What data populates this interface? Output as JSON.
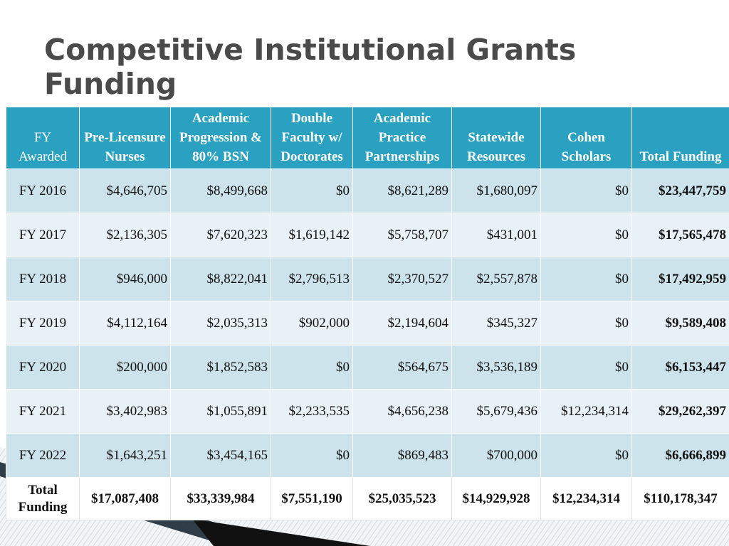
{
  "title": "Competitive Institutional Grants Funding",
  "headers": [
    "FY Awarded",
    "Pre-Licensure Nurses",
    "Academic Progression & 80% BSN",
    "Double Faculty w/ Doctorates",
    "Academic Practice Partnerships",
    "Statewide Resources",
    "Cohen Scholars",
    "Total Funding"
  ],
  "rows": [
    [
      "FY 2016",
      "$4,646,705",
      "$8,499,668",
      "$0",
      "$8,621,289",
      "$1,680,097",
      "$0",
      "$23,447,759"
    ],
    [
      "FY 2017",
      "$2,136,305",
      "$7,620,323",
      "$1,619,142",
      "$5,758,707",
      "$431,001",
      "$0",
      "$17,565,478"
    ],
    [
      "FY 2018",
      "$946,000",
      "$8,822,041",
      "$2,796,513",
      "$2,370,527",
      "$2,557,878",
      "$0",
      "$17,492,959"
    ],
    [
      "FY 2019",
      "$4,112,164",
      "$2,035,313",
      "$902,000",
      "$2,194,604",
      "$345,327",
      "$0",
      "$9,589,408"
    ],
    [
      "FY 2020",
      "$200,000",
      "$1,852,583",
      "$0",
      "$564,675",
      "$3,536,189",
      "$0",
      "$6,153,447"
    ],
    [
      "FY 2021",
      "$3,402,983",
      "$1,055,891",
      "$2,233,535",
      "$4,656,238",
      "$5,679,436",
      "$12,234,314",
      "$29,262,397"
    ],
    [
      "FY 2022",
      "$1,643,251",
      "$3,454,165",
      "$0",
      "$869,483",
      "$700,000",
      "$0",
      "$6,666,899"
    ]
  ],
  "totals": [
    "Total Funding",
    "$17,087,408",
    "$33,339,984",
    "$7,551,190",
    "$25,035,523",
    "$14,929,928",
    "$12,234,314",
    "$110,178,347"
  ],
  "colors": {
    "header_bg": "#2aa1c0",
    "row_dark": "#cde3ec",
    "row_light": "#e8f1f5",
    "title": "#4a4a4a"
  }
}
